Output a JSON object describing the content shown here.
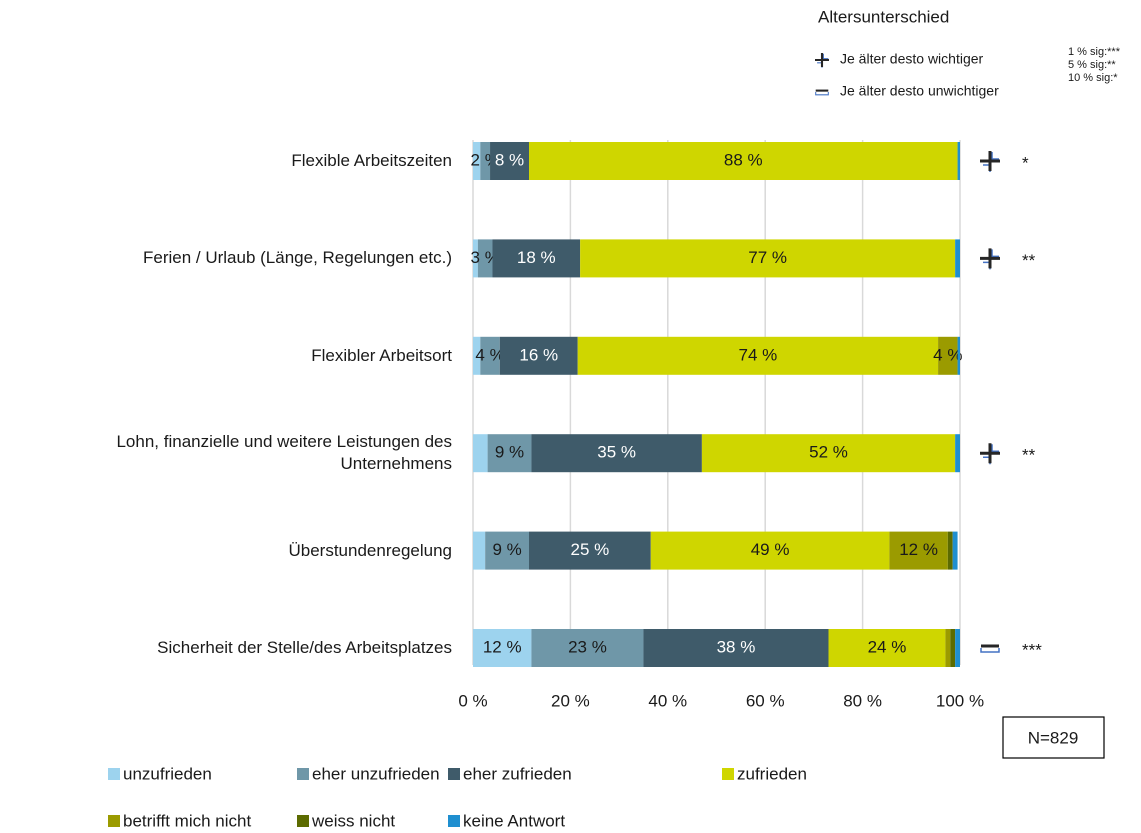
{
  "chart_data": {
    "type": "stacked_barh",
    "categories": [
      "Flexible Arbeitszeiten",
      "Ferien / Urlaub (Länge, Regelungen etc.)",
      "Flexibler Arbeitsort",
      "Lohn, finanzielle und weitere Leistungen des Unternehmens",
      "Überstundenregelung",
      "Sicherheit der Stelle/des Arbeitsplatzes"
    ],
    "series": [
      {
        "name": "unzufrieden",
        "color": "#9dd3ee",
        "values": [
          1.5,
          1,
          1.5,
          3,
          2.5,
          12
        ],
        "value_labels": [
          null,
          null,
          null,
          null,
          null,
          "12 %"
        ]
      },
      {
        "name": "eher unzufrieden",
        "color": "#6f97a8",
        "values": [
          2,
          3,
          4,
          9,
          9,
          23
        ],
        "value_labels": [
          "2 %",
          "3 %",
          "4 %",
          "9 %",
          "9 %",
          "23 %"
        ]
      },
      {
        "name": "eher zufrieden",
        "color": "#3f5b6a",
        "values": [
          8,
          18,
          16,
          35,
          25,
          38
        ],
        "value_labels": [
          "8 %",
          "18 %",
          "16 %",
          "35 %",
          "25 %",
          "38 %"
        ]
      },
      {
        "name": "zufrieden",
        "color": "#cfd600",
        "values": [
          88,
          77,
          74,
          52,
          49,
          24
        ],
        "value_labels": [
          "88 %",
          "77 %",
          "74 %",
          "52 %",
          "49 %",
          "24 %"
        ]
      },
      {
        "name": "betrifft mich nicht",
        "color": "#9b9b00",
        "values": [
          0,
          0,
          4,
          0,
          12,
          1
        ],
        "value_labels": [
          null,
          null,
          "4 %",
          null,
          "12 %",
          null
        ]
      },
      {
        "name": "weiss nicht",
        "color": "#5c6b00",
        "values": [
          0,
          0,
          0,
          0,
          1,
          1
        ],
        "value_labels": [
          null,
          null,
          null,
          null,
          null,
          null
        ]
      },
      {
        "name": "keine Antwort",
        "color": "#1f8fd0",
        "values": [
          0.5,
          1,
          0.5,
          1,
          1,
          1
        ],
        "value_labels": [
          null,
          null,
          null,
          null,
          null,
          null
        ]
      }
    ],
    "xlim": [
      0,
      100
    ],
    "xticks": [
      {
        "value": 0,
        "label": "0 %"
      },
      {
        "value": 20,
        "label": "20 %"
      },
      {
        "value": 40,
        "label": "40 %"
      },
      {
        "value": 60,
        "label": "60 %"
      },
      {
        "value": 80,
        "label": "80 %"
      },
      {
        "value": 100,
        "label": "100 %"
      }
    ],
    "grid": true,
    "age_legend": {
      "title": "Altersunterschied",
      "items": [
        "Je älter desto wichtiger",
        "Je älter desto unwichtiger"
      ]
    },
    "age_effect": [
      0,
      0,
      null,
      0,
      null,
      1
    ],
    "significance": [
      "*",
      "**",
      null,
      "**",
      null,
      "***"
    ],
    "significance_notes": [
      "1 % sig:***",
      "5 % sig:**",
      "10 % sig:*"
    ],
    "note": "N=829"
  }
}
